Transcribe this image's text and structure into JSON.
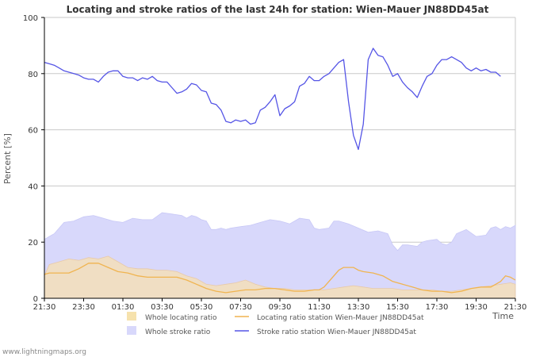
{
  "footer": {
    "credit": "www.lightningmaps.org"
  },
  "colors": {
    "whole_locating_fill": "#f5dfb8",
    "whole_locating_swatch": "#f6e2ad",
    "whole_stroke_fill": "#d8d8fb",
    "locating_line": "#f0b450",
    "stroke_line": "#5555e6",
    "grid": "#c8c8c8",
    "axis": "#000000"
  },
  "chart_data": {
    "type": "line",
    "title": "Locating and stroke ratios of the last 24h for station: Wien-Mauer JN88DD45at",
    "xlabel": "Time",
    "ylabel": "Percent   [%]",
    "x_range_hours": [
      21.5,
      45.5
    ],
    "ylim": [
      0,
      100
    ],
    "yticks": [
      0,
      20,
      40,
      60,
      80,
      100
    ],
    "xticks": [
      {
        "t": 21.5,
        "label": "21:30"
      },
      {
        "t": 23.5,
        "label": "23:30"
      },
      {
        "t": 25.5,
        "label": "01:30"
      },
      {
        "t": 27.5,
        "label": "03:30"
      },
      {
        "t": 29.5,
        "label": "05:30"
      },
      {
        "t": 31.5,
        "label": "07:30"
      },
      {
        "t": 33.5,
        "label": "09:30"
      },
      {
        "t": 35.5,
        "label": "11:30"
      },
      {
        "t": 37.5,
        "label": "13:30"
      },
      {
        "t": 39.5,
        "label": "15:30"
      },
      {
        "t": 41.5,
        "label": "17:30"
      },
      {
        "t": 43.5,
        "label": "19:30"
      },
      {
        "t": 45.5,
        "label": "21:30"
      }
    ],
    "grid": true,
    "legend_position": "bottom",
    "series": [
      {
        "key": "whole_locating",
        "name": "Whole locating ratio",
        "kind": "area",
        "points": [
          [
            21.5,
            8
          ],
          [
            21.75,
            12
          ],
          [
            22.25,
            13
          ],
          [
            22.75,
            14
          ],
          [
            23.25,
            13.5
          ],
          [
            23.75,
            14.5
          ],
          [
            24.25,
            14
          ],
          [
            24.75,
            15
          ],
          [
            25.25,
            13
          ],
          [
            25.75,
            11
          ],
          [
            26.25,
            10.5
          ],
          [
            26.75,
            10.5
          ],
          [
            27.25,
            10
          ],
          [
            27.75,
            10
          ],
          [
            28.25,
            9.5
          ],
          [
            28.75,
            8
          ],
          [
            29.25,
            7
          ],
          [
            29.75,
            5
          ],
          [
            30.25,
            4.5
          ],
          [
            30.75,
            5
          ],
          [
            31.25,
            5.5
          ],
          [
            31.5,
            6
          ],
          [
            31.75,
            6.5
          ],
          [
            32.25,
            5
          ],
          [
            32.75,
            4
          ],
          [
            33.25,
            3.5
          ],
          [
            33.75,
            3.5
          ],
          [
            34.25,
            3
          ],
          [
            34.75,
            3
          ],
          [
            35.25,
            3
          ],
          [
            35.75,
            3
          ],
          [
            36.25,
            3.5
          ],
          [
            36.75,
            4
          ],
          [
            37.25,
            4.5
          ],
          [
            37.75,
            4
          ],
          [
            38.25,
            3.5
          ],
          [
            38.75,
            3.5
          ],
          [
            39.25,
            3.5
          ],
          [
            39.75,
            3
          ],
          [
            40.25,
            3
          ],
          [
            40.75,
            3
          ],
          [
            41.25,
            3
          ],
          [
            41.75,
            2.5
          ],
          [
            42.25,
            2.5
          ],
          [
            42.75,
            3
          ],
          [
            43.25,
            3.5
          ],
          [
            43.75,
            4
          ],
          [
            44.25,
            4.5
          ],
          [
            44.75,
            5
          ],
          [
            45.25,
            5.5
          ],
          [
            45.5,
            5
          ]
        ]
      },
      {
        "key": "whole_stroke",
        "name": "Whole stroke ratio",
        "kind": "area",
        "points": [
          [
            21.5,
            21
          ],
          [
            21.75,
            22
          ],
          [
            22.0,
            23
          ],
          [
            22.25,
            25
          ],
          [
            22.5,
            27
          ],
          [
            23.0,
            27.5
          ],
          [
            23.5,
            29
          ],
          [
            24.0,
            29.5
          ],
          [
            24.5,
            28.5
          ],
          [
            25.0,
            27.5
          ],
          [
            25.5,
            27
          ],
          [
            26.0,
            28.5
          ],
          [
            26.5,
            28
          ],
          [
            27.0,
            28
          ],
          [
            27.5,
            30.5
          ],
          [
            28.0,
            30
          ],
          [
            28.5,
            29.5
          ],
          [
            28.75,
            28.5
          ],
          [
            29.0,
            29.5
          ],
          [
            29.25,
            29
          ],
          [
            29.5,
            28
          ],
          [
            29.75,
            27.5
          ],
          [
            30.0,
            24.5
          ],
          [
            30.25,
            24.5
          ],
          [
            30.5,
            25
          ],
          [
            30.75,
            24.5
          ],
          [
            31.0,
            25
          ],
          [
            31.5,
            25.5
          ],
          [
            32.0,
            26
          ],
          [
            32.5,
            27
          ],
          [
            33.0,
            28
          ],
          [
            33.5,
            27.5
          ],
          [
            33.75,
            27
          ],
          [
            34.0,
            26.5
          ],
          [
            34.5,
            28.5
          ],
          [
            35.0,
            28
          ],
          [
            35.25,
            25
          ],
          [
            35.5,
            24.5
          ],
          [
            36.0,
            25
          ],
          [
            36.25,
            27.5
          ],
          [
            36.5,
            27.5
          ],
          [
            37.0,
            26.5
          ],
          [
            37.5,
            25
          ],
          [
            38.0,
            23.5
          ],
          [
            38.5,
            24
          ],
          [
            39.0,
            23
          ],
          [
            39.25,
            19
          ],
          [
            39.5,
            17
          ],
          [
            39.75,
            19
          ],
          [
            40.0,
            19
          ],
          [
            40.5,
            18.5
          ],
          [
            40.75,
            20
          ],
          [
            41.0,
            20.5
          ],
          [
            41.5,
            21
          ],
          [
            41.75,
            19.5
          ],
          [
            42.0,
            19
          ],
          [
            42.25,
            20
          ],
          [
            42.5,
            23
          ],
          [
            43.0,
            24.5
          ],
          [
            43.5,
            22
          ],
          [
            44.0,
            22.5
          ],
          [
            44.25,
            25
          ],
          [
            44.5,
            25.5
          ],
          [
            44.75,
            24.5
          ],
          [
            45.0,
            25.5
          ],
          [
            45.25,
            25
          ],
          [
            45.5,
            26
          ]
        ]
      },
      {
        "key": "locating_station",
        "name": "Locating ratio station Wien-Mauer JN88DD45at",
        "kind": "line",
        "points": [
          [
            21.5,
            8.5
          ],
          [
            21.75,
            9
          ],
          [
            22.25,
            9
          ],
          [
            22.75,
            9
          ],
          [
            23.25,
            10.5
          ],
          [
            23.75,
            12.5
          ],
          [
            24.25,
            12.5
          ],
          [
            24.75,
            11
          ],
          [
            25.25,
            9.5
          ],
          [
            25.75,
            9
          ],
          [
            26.25,
            8
          ],
          [
            26.75,
            7.5
          ],
          [
            27.25,
            7.5
          ],
          [
            27.75,
            7.5
          ],
          [
            28.25,
            7.5
          ],
          [
            28.75,
            6.5
          ],
          [
            29.25,
            5
          ],
          [
            29.75,
            3.5
          ],
          [
            30.25,
            2.5
          ],
          [
            30.75,
            2
          ],
          [
            31.25,
            2.5
          ],
          [
            31.75,
            3
          ],
          [
            32.25,
            3
          ],
          [
            32.75,
            3.5
          ],
          [
            33.25,
            3.5
          ],
          [
            33.75,
            3
          ],
          [
            34.25,
            2.5
          ],
          [
            34.75,
            2.5
          ],
          [
            35.25,
            3
          ],
          [
            35.5,
            3
          ],
          [
            35.75,
            4
          ],
          [
            36.25,
            8
          ],
          [
            36.5,
            10
          ],
          [
            36.75,
            11
          ],
          [
            37.25,
            11
          ],
          [
            37.5,
            10
          ],
          [
            37.75,
            9.5
          ],
          [
            38.25,
            9
          ],
          [
            38.75,
            8
          ],
          [
            39.25,
            6
          ],
          [
            39.75,
            5
          ],
          [
            40.25,
            4
          ],
          [
            40.75,
            3
          ],
          [
            41.25,
            2.5
          ],
          [
            41.75,
            2.5
          ],
          [
            42.25,
            2
          ],
          [
            42.75,
            2.5
          ],
          [
            43.25,
            3.5
          ],
          [
            43.75,
            4
          ],
          [
            44.25,
            4
          ],
          [
            44.75,
            6
          ],
          [
            45.0,
            8
          ],
          [
            45.25,
            7.5
          ],
          [
            45.5,
            6.5
          ]
        ]
      },
      {
        "key": "stroke_station",
        "name": "Stroke ratio station Wien-Mauer JN88DD45at",
        "kind": "line",
        "points": [
          [
            21.5,
            84
          ],
          [
            21.75,
            83.5
          ],
          [
            22.0,
            83
          ],
          [
            22.25,
            82
          ],
          [
            22.5,
            81
          ],
          [
            22.75,
            80.5
          ],
          [
            23.0,
            80
          ],
          [
            23.25,
            79.5
          ],
          [
            23.5,
            78.5
          ],
          [
            23.75,
            78
          ],
          [
            24.0,
            78
          ],
          [
            24.25,
            77
          ],
          [
            24.5,
            79
          ],
          [
            24.75,
            80.5
          ],
          [
            25.0,
            81
          ],
          [
            25.25,
            81
          ],
          [
            25.5,
            79
          ],
          [
            25.75,
            78.5
          ],
          [
            26.0,
            78.5
          ],
          [
            26.25,
            77.5
          ],
          [
            26.5,
            78.5
          ],
          [
            26.75,
            78
          ],
          [
            27.0,
            79
          ],
          [
            27.25,
            77.5
          ],
          [
            27.5,
            77
          ],
          [
            27.75,
            77
          ],
          [
            28.0,
            75
          ],
          [
            28.25,
            73
          ],
          [
            28.5,
            73.5
          ],
          [
            28.75,
            74.5
          ],
          [
            29.0,
            76.5
          ],
          [
            29.25,
            76
          ],
          [
            29.5,
            74
          ],
          [
            29.75,
            73.5
          ],
          [
            30.0,
            69.5
          ],
          [
            30.25,
            69
          ],
          [
            30.5,
            67
          ],
          [
            30.75,
            63
          ],
          [
            31.0,
            62.5
          ],
          [
            31.25,
            63.5
          ],
          [
            31.5,
            63
          ],
          [
            31.75,
            63.5
          ],
          [
            32.0,
            62
          ],
          [
            32.25,
            62.5
          ],
          [
            32.5,
            67
          ],
          [
            32.75,
            68
          ],
          [
            33.0,
            70
          ],
          [
            33.25,
            72.5
          ],
          [
            33.5,
            65
          ],
          [
            33.75,
            67.5
          ],
          [
            34.0,
            68.5
          ],
          [
            34.25,
            70
          ],
          [
            34.5,
            75.5
          ],
          [
            34.75,
            76.5
          ],
          [
            35.0,
            79
          ],
          [
            35.25,
            77.5
          ],
          [
            35.5,
            77.5
          ],
          [
            35.75,
            79
          ],
          [
            36.0,
            80
          ],
          [
            36.25,
            82
          ],
          [
            36.5,
            84
          ],
          [
            36.75,
            85
          ],
          [
            37.0,
            70
          ],
          [
            37.25,
            58
          ],
          [
            37.5,
            53
          ],
          [
            37.75,
            62
          ],
          [
            38.0,
            85
          ],
          [
            38.25,
            89
          ],
          [
            38.5,
            86.5
          ],
          [
            38.75,
            86
          ],
          [
            39.0,
            83
          ],
          [
            39.25,
            79
          ],
          [
            39.5,
            80
          ],
          [
            39.75,
            77
          ],
          [
            40.0,
            75
          ],
          [
            40.25,
            73.5
          ],
          [
            40.5,
            71.5
          ],
          [
            40.75,
            75.5
          ],
          [
            41.0,
            79
          ],
          [
            41.25,
            80
          ],
          [
            41.5,
            83
          ],
          [
            41.75,
            85
          ],
          [
            42.0,
            85
          ],
          [
            42.25,
            86
          ],
          [
            42.5,
            85
          ],
          [
            42.75,
            84
          ],
          [
            43.0,
            82
          ],
          [
            43.25,
            81
          ],
          [
            43.5,
            82
          ],
          [
            43.75,
            81
          ],
          [
            44.0,
            81.5
          ],
          [
            44.25,
            80.5
          ],
          [
            44.5,
            80.5
          ],
          [
            44.75,
            79
          ]
        ]
      }
    ]
  }
}
